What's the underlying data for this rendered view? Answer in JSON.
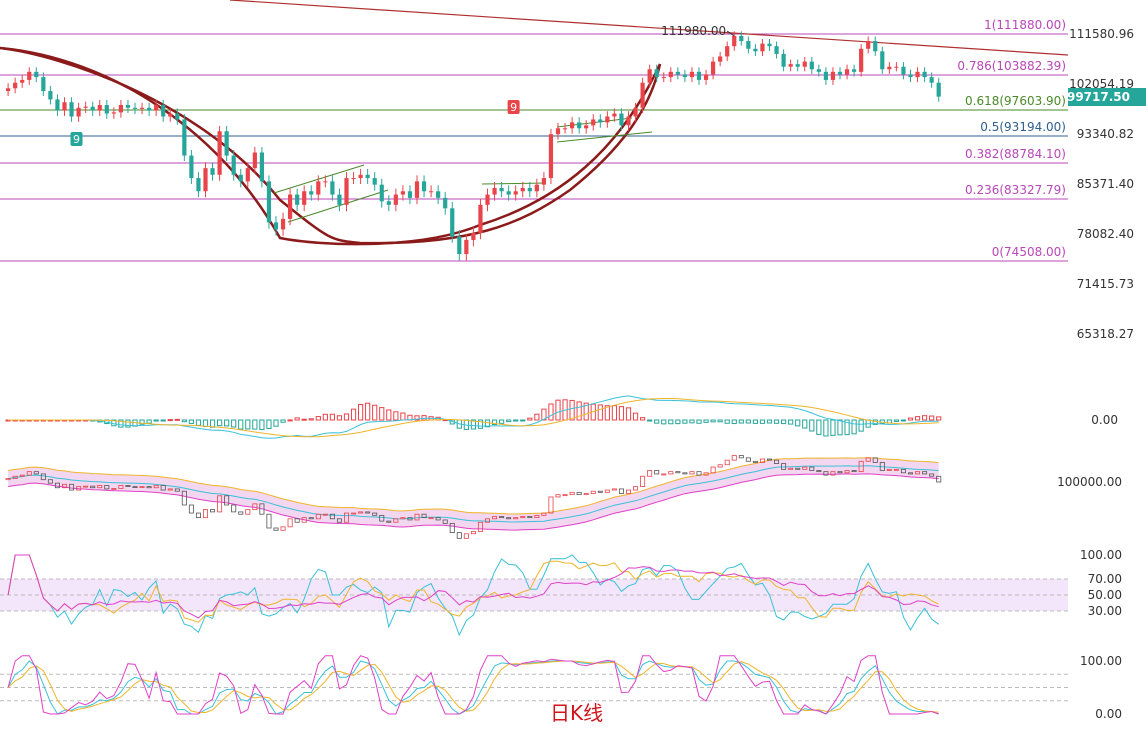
{
  "caption": "日K线",
  "current_price": "99717.50",
  "colors": {
    "up": "#e8444a",
    "down": "#26a69a",
    "fib": "#b847b8",
    "fib618": "#4a8a2a",
    "fib05": "#2f5f8f",
    "arc": "#8b1a1a",
    "trend": "#b03030",
    "price_badge": "#26a69a",
    "caption": "#d0161b",
    "ma_yellow": "#f0b429",
    "ma_cyan": "#3ac1d8",
    "ma_pink": "#e040c8",
    "boll_fill": "#f3d6f0"
  },
  "chart_data": {
    "type": "candlestick",
    "period": "daily",
    "price_axis_ticks": [
      "111580.96",
      "102054.19",
      "93340.82",
      "85371.40",
      "78082.40",
      "71415.73",
      "65318.27"
    ],
    "price_axis_values": [
      111580.96,
      102054.19,
      93340.82,
      85371.4,
      78082.4,
      71415.73,
      65318.27
    ],
    "fibonacci": [
      {
        "ratio": "1",
        "price": 111880.0,
        "label": "1(111880.00)"
      },
      {
        "ratio": "0.786",
        "price": 103882.39,
        "label": "0.786(103882.39)"
      },
      {
        "ratio": "0.618",
        "price": 97603.9,
        "label": "0.618(97603.90)"
      },
      {
        "ratio": "0.5",
        "price": 93194.0,
        "label": "0.5(93194.00)"
      },
      {
        "ratio": "0.382",
        "price": 88784.1,
        "label": "0.382(88784.10)"
      },
      {
        "ratio": "0.236",
        "price": 83327.79,
        "label": "0.236(83327.79)"
      },
      {
        "ratio": "0",
        "price": 74508.0,
        "label": "0(74508.00)"
      }
    ],
    "high_marker": {
      "label": "111980.00",
      "price": 111980.0
    },
    "td_markers": [
      {
        "label": "9",
        "index": 10,
        "direction": "down"
      },
      {
        "label": "9",
        "index": 72,
        "direction": "up"
      }
    ],
    "closes": [
      101500,
      102500,
      103000,
      104500,
      103500,
      101000,
      99500,
      97500,
      99000,
      96500,
      98000,
      98200,
      97500,
      98500,
      97000,
      97200,
      98500,
      98000,
      97800,
      98000,
      97500,
      98500,
      96500,
      97000,
      96000,
      90000,
      86500,
      84500,
      88000,
      87000,
      94000,
      90000,
      87000,
      86000,
      88000,
      90500,
      86000,
      80000,
      79000,
      80500,
      84000,
      82500,
      84500,
      84000,
      86000,
      86000,
      84000,
      82500,
      86500,
      86500,
      87000,
      86500,
      85500,
      83000,
      82500,
      84000,
      84500,
      83500,
      86000,
      84500,
      84500,
      83500,
      82000,
      78000,
      75500,
      77500,
      78500,
      82500,
      84000,
      85000,
      84500,
      84000,
      84500,
      85000,
      84500,
      85500,
      86500,
      93500,
      94500,
      94500,
      95500,
      94500,
      95000,
      96000,
      95500,
      96500,
      97000,
      95000,
      96500,
      98000,
      102500,
      105000,
      103500,
      103500,
      104500,
      104000,
      103500,
      104500,
      103000,
      104000,
      106500,
      107500,
      109500,
      111500,
      110500,
      109000,
      108500,
      110000,
      109500,
      108000,
      105500,
      106000,
      105500,
      106500,
      105000,
      104500,
      103000,
      104500,
      104000,
      105000,
      104500,
      109000,
      110500,
      108500,
      105000,
      105500,
      105500,
      104000,
      103500,
      104500,
      103500,
      102500,
      100000
    ],
    "indicator_axis": {
      "macd": [
        "0.00"
      ],
      "boll": [
        "100000.00"
      ],
      "rsi": [
        "100.00",
        "70.00",
        "50.00",
        "30.00"
      ],
      "kdj": [
        "100.00",
        "0.00"
      ]
    }
  }
}
